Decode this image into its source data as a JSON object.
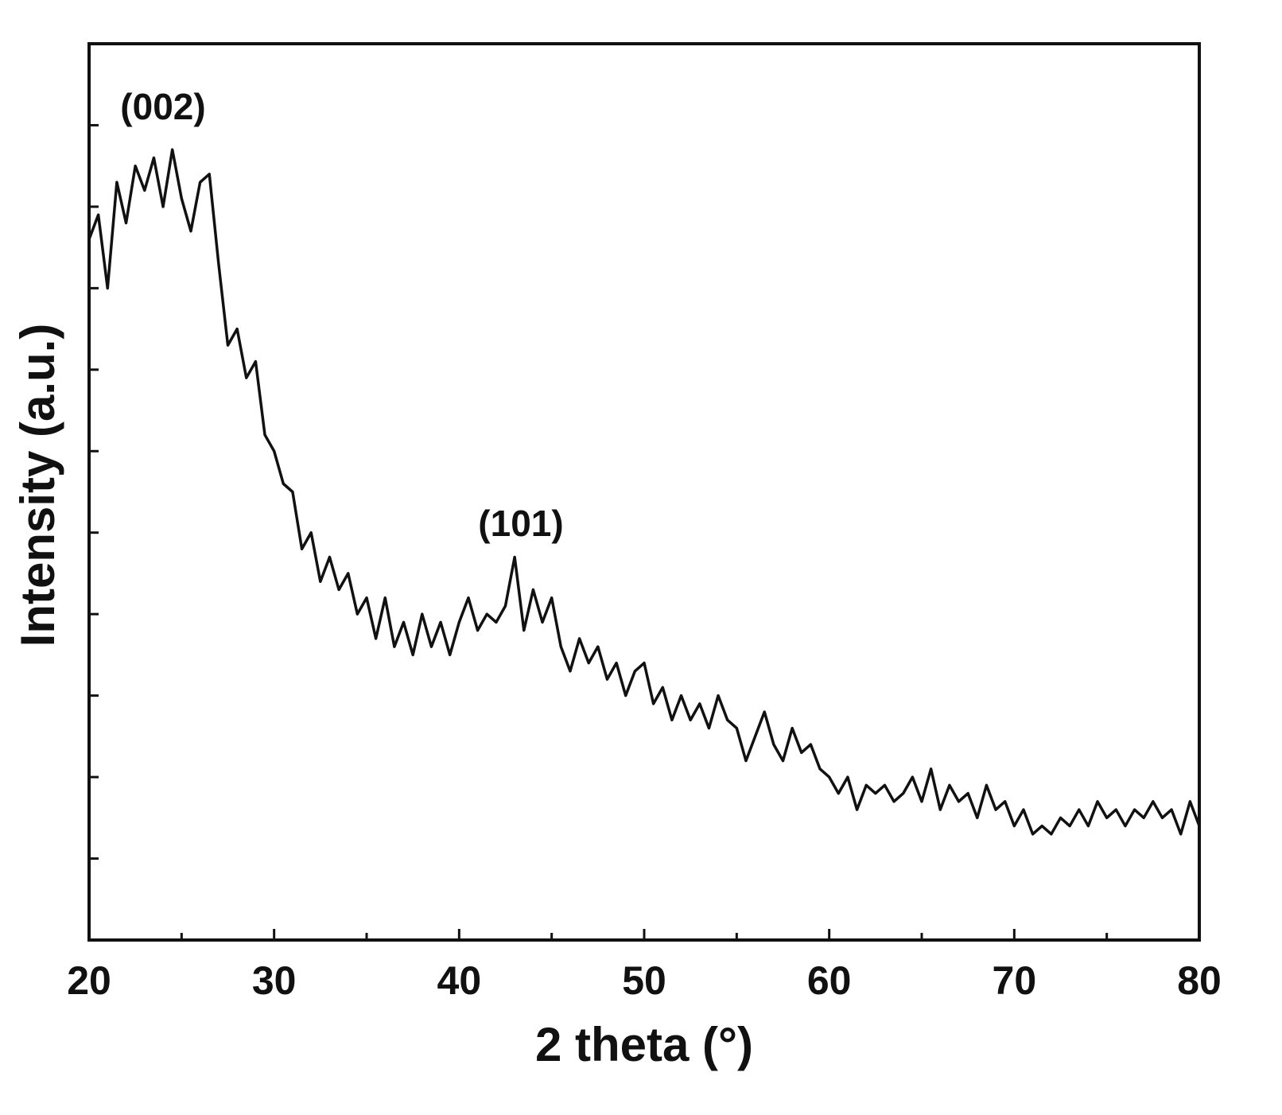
{
  "chart_data": {
    "type": "line",
    "xlabel": "2 theta (°)",
    "ylabel": "Intensity (a.u.)",
    "annotations": [
      "(002)",
      "(101)"
    ],
    "xlim": [
      20,
      80
    ],
    "xticks": [
      20,
      30,
      40,
      50,
      60,
      70,
      80
    ],
    "xminor_ticks": [
      25,
      35,
      45,
      55,
      65,
      75
    ],
    "ylim": [
      0,
      11
    ],
    "yticks": [
      1,
      2,
      3,
      4,
      5,
      6,
      7,
      8,
      9,
      10
    ],
    "y_tick_labels": false,
    "grid": false,
    "x": [
      20,
      20.5,
      21,
      21.5,
      22,
      22.5,
      23,
      23.5,
      24,
      24.5,
      25,
      25.5,
      26,
      26.5,
      27,
      27.5,
      28,
      28.5,
      29,
      29.5,
      30,
      30.5,
      31,
      31.5,
      32,
      32.5,
      33,
      33.5,
      34,
      34.5,
      35,
      35.5,
      36,
      36.5,
      37,
      37.5,
      38,
      38.5,
      39,
      39.5,
      40,
      40.5,
      41,
      41.5,
      42,
      42.5,
      43,
      43.5,
      44,
      44.5,
      45,
      45.5,
      46,
      46.5,
      47,
      47.5,
      48,
      48.5,
      49,
      49.5,
      50,
      50.5,
      51,
      51.5,
      52,
      52.5,
      53,
      53.5,
      54,
      54.5,
      55,
      55.5,
      56,
      56.5,
      57,
      57.5,
      58,
      58.5,
      59,
      59.5,
      60,
      60.5,
      61,
      61.5,
      62,
      62.5,
      63,
      63.5,
      64,
      64.5,
      65,
      65.5,
      66,
      66.5,
      67,
      67.5,
      68,
      68.5,
      69,
      69.5,
      70,
      70.5,
      71,
      71.5,
      72,
      72.5,
      73,
      73.5,
      74,
      74.5,
      75,
      75.5,
      76,
      76.5,
      77,
      77.5,
      78,
      78.5,
      79,
      79.5,
      80
    ],
    "series": [
      {
        "color": "#111111",
        "values": [
          8.6,
          8.9,
          8.0,
          9.3,
          8.8,
          9.5,
          9.2,
          9.6,
          9.0,
          9.7,
          9.1,
          8.7,
          9.3,
          9.4,
          8.3,
          7.3,
          7.5,
          6.9,
          7.1,
          6.2,
          6.0,
          5.6,
          5.5,
          4.8,
          5.0,
          4.4,
          4.7,
          4.3,
          4.5,
          4.0,
          4.2,
          3.7,
          4.2,
          3.6,
          3.9,
          3.5,
          4.0,
          3.6,
          3.9,
          3.5,
          3.9,
          4.2,
          3.8,
          4.0,
          3.9,
          4.1,
          4.7,
          3.8,
          4.3,
          3.9,
          4.2,
          3.6,
          3.3,
          3.7,
          3.4,
          3.6,
          3.2,
          3.4,
          3.0,
          3.3,
          3.4,
          2.9,
          3.1,
          2.7,
          3.0,
          2.7,
          2.9,
          2.6,
          3.0,
          2.7,
          2.6,
          2.2,
          2.5,
          2.8,
          2.4,
          2.2,
          2.6,
          2.3,
          2.4,
          2.1,
          2.0,
          1.8,
          2.0,
          1.6,
          1.9,
          1.8,
          1.9,
          1.7,
          1.8,
          2.0,
          1.7,
          2.1,
          1.6,
          1.9,
          1.7,
          1.8,
          1.5,
          1.9,
          1.6,
          1.7,
          1.4,
          1.6,
          1.3,
          1.4,
          1.3,
          1.5,
          1.4,
          1.6,
          1.4,
          1.7,
          1.5,
          1.6,
          1.4,
          1.6,
          1.5,
          1.7,
          1.5,
          1.6,
          1.3,
          1.7,
          1.4
        ]
      }
    ]
  }
}
